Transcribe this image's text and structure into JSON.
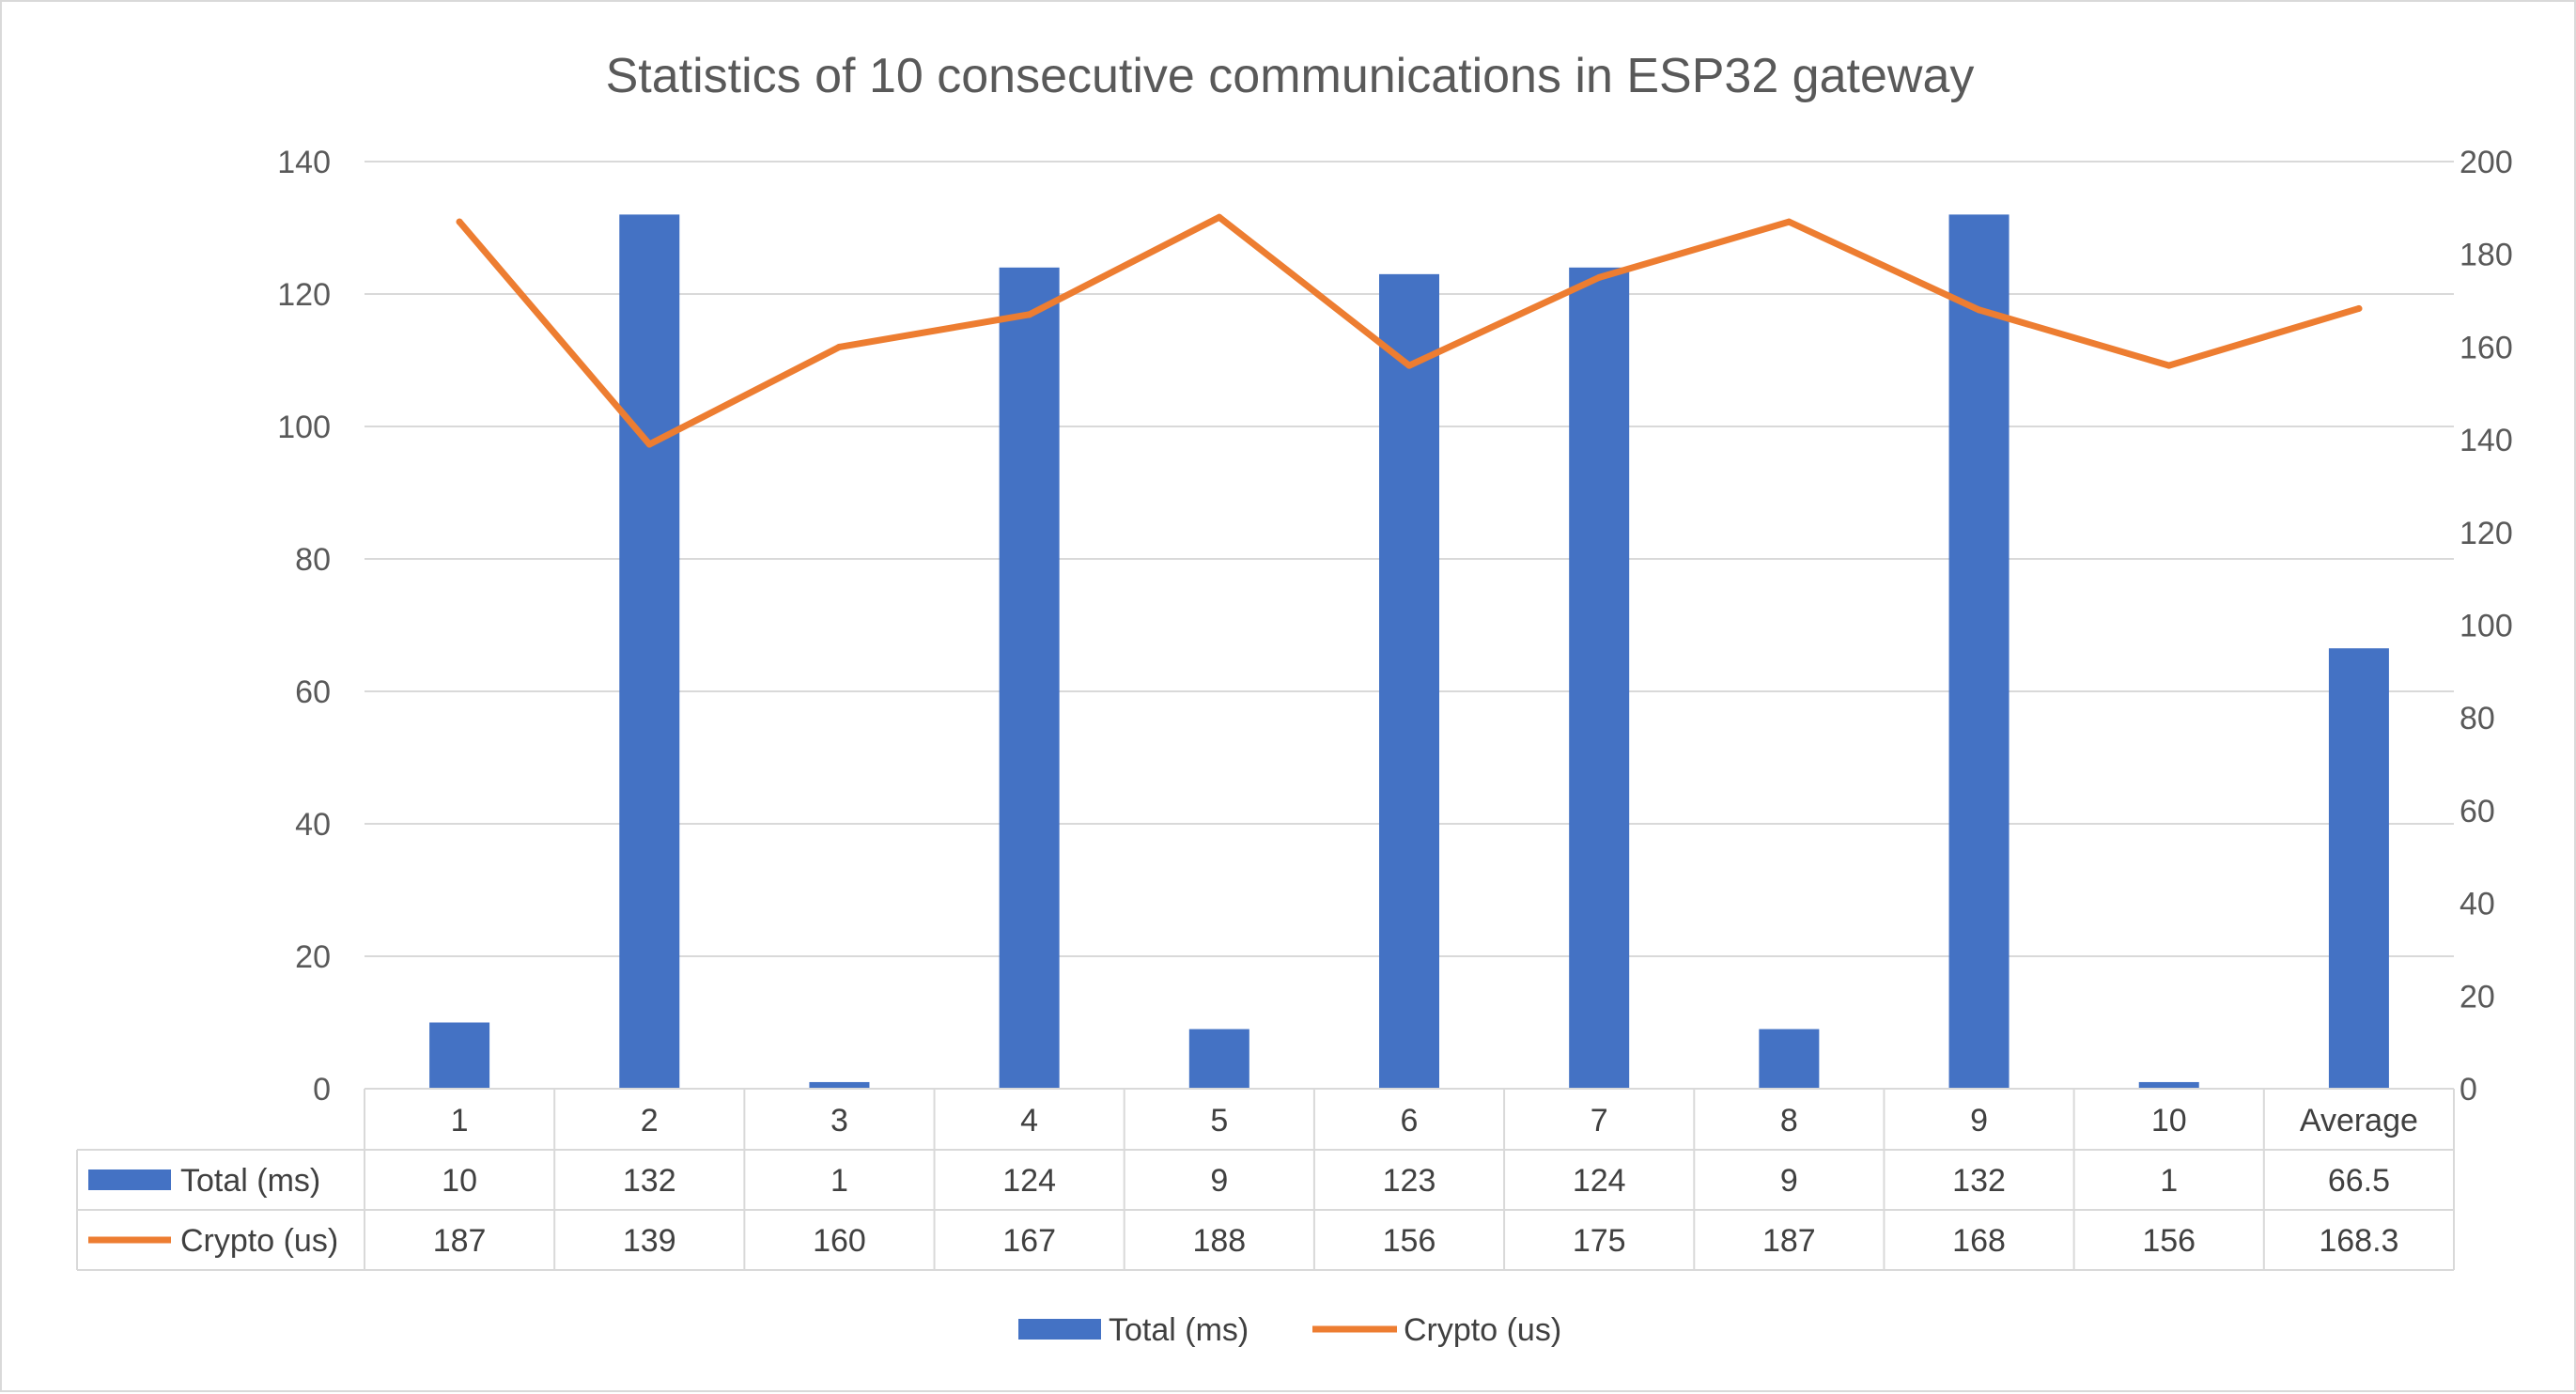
{
  "colors": {
    "total": "#4472C4",
    "crypto": "#ED7D31",
    "grid": "#d9d9d9",
    "text": "#595959"
  },
  "chart_data": {
    "type": "bar",
    "title": "Statistics of 10 consecutive communications in ESP32 gateway",
    "categories": [
      "1",
      "2",
      "3",
      "4",
      "5",
      "6",
      "7",
      "8",
      "9",
      "10",
      "Average"
    ],
    "series": [
      {
        "name": "Total (ms)",
        "type": "bar",
        "axis": "left",
        "values": [
          10,
          132,
          1,
          124,
          9,
          123,
          124,
          9,
          132,
          1,
          66.5
        ],
        "labels": [
          "10",
          "132",
          "1",
          "124",
          "9",
          "123",
          "124",
          "9",
          "132",
          "1",
          "66.5"
        ]
      },
      {
        "name": "Crypto (us)",
        "type": "line",
        "axis": "right",
        "values": [
          187,
          139,
          160,
          167,
          188,
          156,
          175,
          187,
          168,
          156,
          168.3
        ],
        "labels": [
          "187",
          "139",
          "160",
          "167",
          "188",
          "156",
          "175",
          "187",
          "168",
          "156",
          "168.3"
        ]
      }
    ],
    "y_left": {
      "range": [
        0,
        140
      ],
      "ticks": [
        0,
        20,
        40,
        60,
        80,
        100,
        120,
        140
      ]
    },
    "y_right": {
      "range": [
        0,
        200
      ],
      "ticks": [
        0,
        20,
        40,
        60,
        80,
        100,
        120,
        140,
        160,
        180,
        200
      ]
    },
    "grid": true,
    "data_table": true,
    "legend": "bottom"
  }
}
